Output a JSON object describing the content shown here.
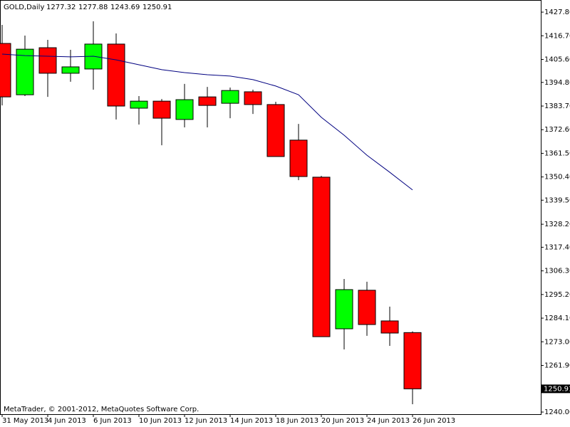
{
  "chart_data": {
    "type": "candlestick",
    "title": "GOLD,Daily",
    "footer": "MetaTrader, © 2001-2012, MetaQuotes Software Corp.",
    "categories": [
      "31 May 2013",
      null,
      "4 Jun 2013",
      null,
      "6 Jun 2013",
      null,
      "10 Jun 2013",
      null,
      "12 Jun 2013",
      null,
      "14 Jun 2013",
      null,
      "18 Jun 2013",
      null,
      "20 Jun 2013",
      null,
      "24 Jun 2013",
      null,
      "26 Jun 2013"
    ],
    "series": [
      {
        "up_color": "#00ff00",
        "down_color": "#ff0000",
        "open": [
          1413.1,
          1389.0,
          1411.1,
          1399.1,
          1401.1,
          1412.8,
          1382.7,
          1386.0,
          1377.4,
          1388.0,
          1385.0,
          1390.4,
          1384.4,
          1367.7,
          1350.3,
          1279.1,
          1297.2,
          1282.8,
          1277.32
        ],
        "high": [
          1421.8,
          1416.8,
          1414.8,
          1410.1,
          1423.5,
          1417.8,
          1388.4,
          1387.0,
          1394.1,
          1392.7,
          1392.4,
          1391.4,
          1385.7,
          1375.3,
          1350.9,
          1302.5,
          1301.2,
          1289.5,
          1277.88
        ],
        "low": [
          1384.0,
          1388.4,
          1388.0,
          1395.1,
          1391.4,
          1377.4,
          1375.0,
          1365.3,
          1373.7,
          1373.7,
          1378.0,
          1380.0,
          1360.0,
          1348.9,
          1275.4,
          1269.4,
          1275.8,
          1271.1,
          1243.69
        ],
        "close": [
          1388.0,
          1410.4,
          1399.1,
          1402.1,
          1412.8,
          1383.7,
          1386.0,
          1378.0,
          1386.7,
          1384.0,
          1391.0,
          1384.4,
          1360.0,
          1350.6,
          1275.4,
          1297.5,
          1281.1,
          1277.1,
          1250.91
        ]
      }
    ],
    "moving_average": {
      "color": "#000080",
      "values": [
        1408.1,
        1407.4,
        1407.1,
        1406.8,
        1407.1,
        1405.4,
        1403.1,
        1400.8,
        1399.4,
        1398.4,
        1397.8,
        1396.1,
        1393.1,
        1389.0,
        1378.4,
        1370.0,
        1360.6,
        1352.6,
        1344.3
      ]
    },
    "ylim": [
      1239.0,
      1433.5
    ],
    "yticks": [
      {
        "value": 1427.8,
        "label": "1427.80"
      },
      {
        "value": 1416.7,
        "label": "1416.70"
      },
      {
        "value": 1405.6,
        "label": "1405.60"
      },
      {
        "value": 1394.8,
        "label": "1394.80"
      },
      {
        "value": 1383.7,
        "label": "1383.70"
      },
      {
        "value": 1372.6,
        "label": "1372.60"
      },
      {
        "value": 1361.5,
        "label": "1361.50"
      },
      {
        "value": 1350.4,
        "label": "1350.40"
      },
      {
        "value": 1339.5,
        "label": "1339.50"
      },
      {
        "value": 1328.2,
        "label": "1328.20"
      },
      {
        "value": 1317.4,
        "label": "1317.40"
      },
      {
        "value": 1306.3,
        "label": "1306.30"
      },
      {
        "value": 1295.2,
        "label": "1295.20"
      },
      {
        "value": 1284.1,
        "label": "1284.10"
      },
      {
        "value": 1273.0,
        "label": "1273.00"
      },
      {
        "value": 1261.9,
        "label": "1261.90"
      },
      {
        "value": 1240.0,
        "label": "1240.00"
      }
    ],
    "grid": false
  }
}
